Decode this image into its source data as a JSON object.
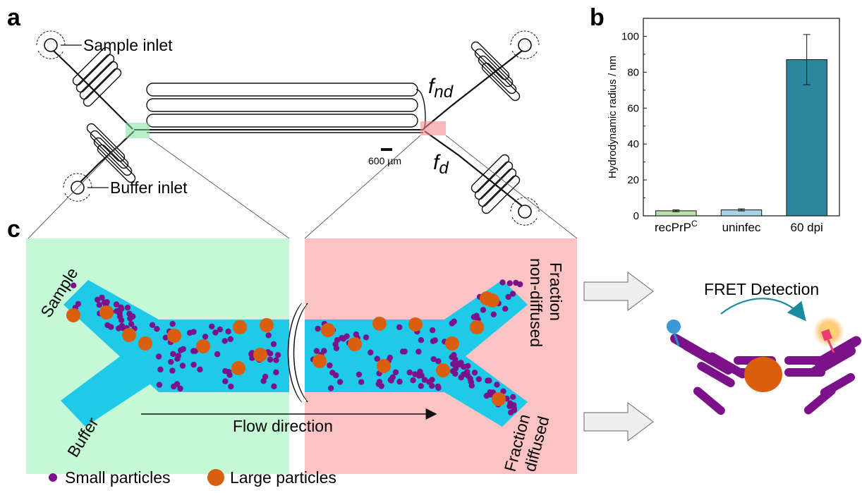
{
  "panels": {
    "a": "a",
    "b": "b",
    "c": "c"
  },
  "chip": {
    "sample_inlet": "Sample inlet",
    "buffer_inlet": "Buffer inlet",
    "f_nd_main": "f",
    "f_nd_sub": "nd",
    "f_d_main": "f",
    "f_d_sub": "d",
    "scale_bar": "600 µm"
  },
  "zoom": {
    "sample": "Sample",
    "buffer": "Buffer",
    "flow_direction": "Flow direction",
    "fraction_non_diffused_1": "Fraction",
    "fraction_non_diffused_2": "non-diffused",
    "fraction_diffused_1": "Fraction",
    "fraction_diffused_2": "diffused",
    "fret_detection": "FRET Detection"
  },
  "legend": {
    "small_particles": "Small particles",
    "large_particles": "Large particles"
  },
  "colors": {
    "left_panel_bg": "#c4f8d6",
    "right_panel_bg": "#fbc3c4",
    "channel": "#1fc9e8",
    "small_particle": "#7b128a",
    "large_particle": "#d95f0e",
    "antibody": "#7b128a",
    "bar_green": "#b8e2a9",
    "bar_lightblue": "#a7d2e8",
    "bar_teal": "#2b879e"
  },
  "chart_data": {
    "type": "bar",
    "categories": [
      "recPrP",
      "uninfec",
      "60 dpi"
    ],
    "category_superscripts": [
      "C",
      "",
      ""
    ],
    "values": [
      2.8,
      3.3,
      87.0
    ],
    "errors": [
      0.5,
      0.6,
      14.0
    ],
    "ylabel": "Hydrodynamic radius / nm",
    "ylim": [
      0,
      110
    ],
    "yticks": [
      0,
      20,
      40,
      60,
      80,
      100
    ],
    "colors": [
      "#b8e2a9",
      "#a7d2e8",
      "#2b879e"
    ]
  }
}
